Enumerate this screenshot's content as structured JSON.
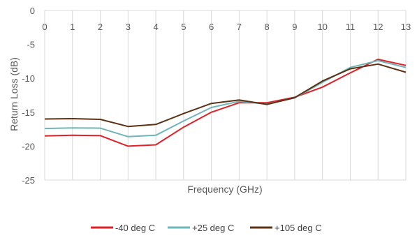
{
  "chart_data": {
    "type": "line",
    "xlabel": "Frequency (GHz)",
    "ylabel": "Return Loss (dB)",
    "x": [
      0,
      1,
      2,
      3,
      4,
      5,
      6,
      7,
      8,
      9,
      10,
      11,
      12,
      13
    ],
    "x_tick_labels": [
      "0",
      "1",
      "2",
      "3",
      "4",
      "5",
      "6",
      "7",
      "8",
      "9",
      "10",
      "11",
      "12",
      "13"
    ],
    "y_ticks": [
      0,
      -5,
      -10,
      -15,
      -20,
      -25
    ],
    "y_tick_labels": [
      "0",
      "-5",
      "-10",
      "-15",
      "-20",
      "-25"
    ],
    "xlim": [
      0,
      13
    ],
    "ylim": [
      -25,
      0
    ],
    "grid": "vertical",
    "legend_position": "bottom",
    "series": [
      {
        "name": "-40 deg C",
        "color": "#e02127",
        "values": [
          -18.5,
          -18.4,
          -18.45,
          -20.0,
          -19.8,
          -17.2,
          -15.0,
          -13.6,
          -13.6,
          -12.8,
          -11.3,
          -9.2,
          -7.2,
          -8.1
        ]
      },
      {
        "name": "+25 deg C",
        "color": "#6fb5b9",
        "values": [
          -17.4,
          -17.3,
          -17.35,
          -18.6,
          -18.4,
          -16.3,
          -14.3,
          -13.4,
          -13.8,
          -12.9,
          -10.6,
          -8.4,
          -7.4,
          -8.4
        ]
      },
      {
        "name": "+105 deg C",
        "color": "#5b3214",
        "values": [
          -16.0,
          -15.95,
          -16.05,
          -17.1,
          -16.8,
          -15.2,
          -13.7,
          -13.2,
          -13.85,
          -12.85,
          -10.4,
          -8.6,
          -7.9,
          -9.1
        ]
      }
    ]
  }
}
